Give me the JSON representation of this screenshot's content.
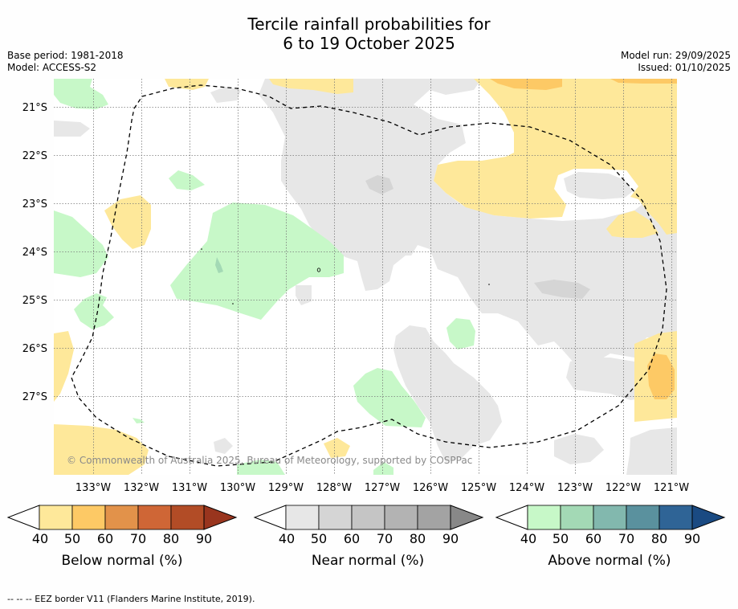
{
  "title": {
    "line1": "Tercile rainfall probabilities for",
    "line2": "6 to 19 October 2025"
  },
  "meta_left": {
    "base_period": "Base period: 1981-2018",
    "model": "Model: ACCESS-S2"
  },
  "meta_right": {
    "model_run": "Model run: 29/09/2025",
    "issued": "Issued: 01/10/2025"
  },
  "map": {
    "lat_labels": [
      "21°S",
      "22°S",
      "23°S",
      "24°S",
      "25°S",
      "26°S",
      "27°S"
    ],
    "lon_labels": [
      "133°W",
      "132°W",
      "131°W",
      "130°W",
      "129°W",
      "128°W",
      "127°W",
      "126°W",
      "125°W",
      "124°W",
      "123°W",
      "122°W",
      "121°W"
    ],
    "copyright": "© Commonwealth of Australia 2025, Bureau of Meteorology, supported by COSPPac"
  },
  "colorbars": [
    {
      "title": "Below normal (%)",
      "ticks": [
        "40",
        "50",
        "60",
        "70",
        "80",
        "90"
      ],
      "colors": [
        "#fee89a",
        "#fdc965",
        "#e2924a",
        "#cf6636",
        "#b24c26",
        "#99351e"
      ]
    },
    {
      "title": "Near normal (%)",
      "ticks": [
        "40",
        "50",
        "60",
        "70",
        "80",
        "90"
      ],
      "colors": [
        "#e7e7e7",
        "#d5d5d5",
        "#c5c5c5",
        "#b3b3b3",
        "#a3a3a3",
        "#888888"
      ]
    },
    {
      "title": "Above normal (%)",
      "ticks": [
        "40",
        "50",
        "60",
        "70",
        "80",
        "90"
      ],
      "colors": [
        "#c7f8c8",
        "#a3d9b5",
        "#82b8ae",
        "#5a919e",
        "#2f6496",
        "#1a4a82"
      ]
    }
  ],
  "footer": "--  --  -- EEZ border V11 (Flanders Marine Institute, 2019)."
}
